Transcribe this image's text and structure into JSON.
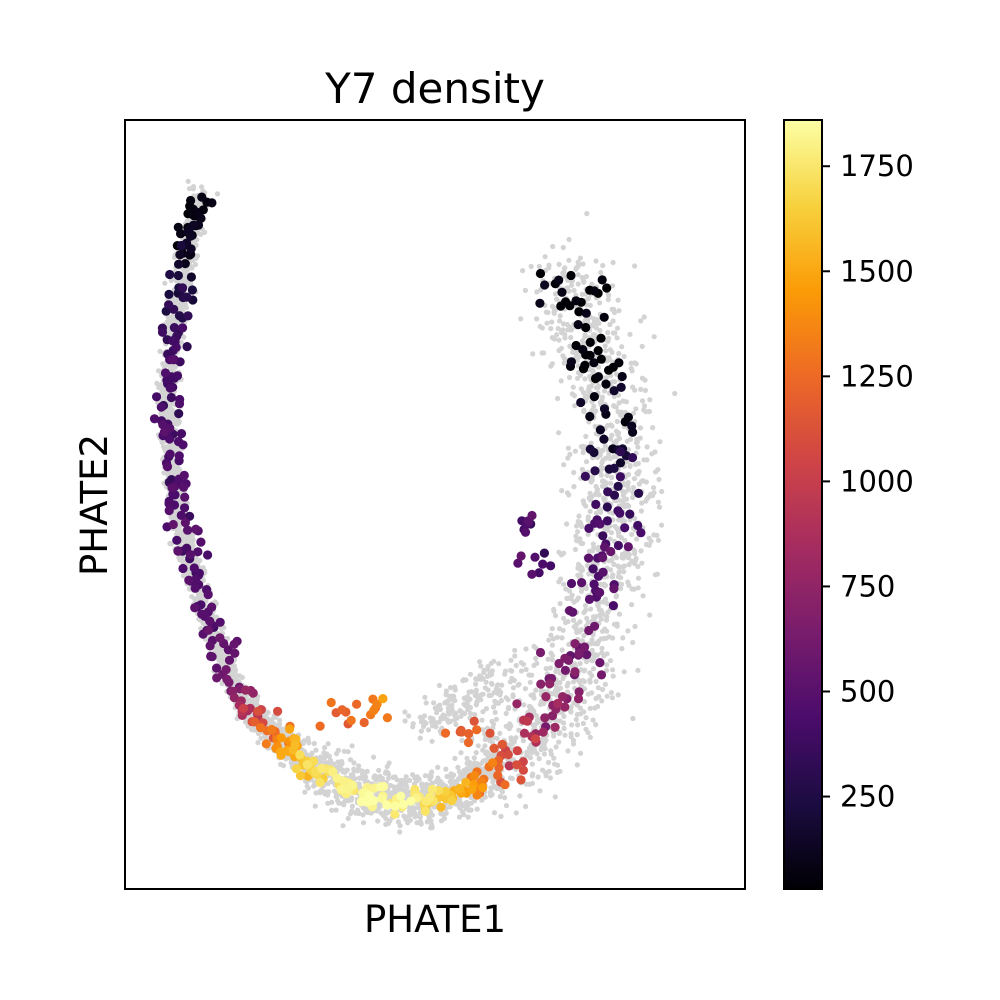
{
  "chart_data": {
    "type": "scatter",
    "title": "Y7 density",
    "xlabel": "PHATE1",
    "ylabel": "PHATE2",
    "x_ticks_shown": false,
    "y_ticks_shown": false,
    "grid": false,
    "background_point_color": "#d3d3d3",
    "colormap": "inferno",
    "colorbar": {
      "min": 30,
      "max": 1860,
      "ticks": [
        250,
        500,
        750,
        1000,
        1250,
        1500,
        1750
      ],
      "tick_labels": [
        "250",
        "500",
        "750",
        "1000",
        "1250",
        "1500",
        "1750"
      ],
      "colors": [
        "#000004",
        "#1b0c41",
        "#4a0c6b",
        "#781c6d",
        "#a52c60",
        "#cf4446",
        "#ed6925",
        "#fb9b06",
        "#f7d13d",
        "#fcffa4"
      ]
    },
    "series": [
      {
        "values": [
          {
            "x": -0.76,
            "y": 0.85,
            "v": 40
          },
          {
            "x": -0.78,
            "y": 0.78,
            "v": 60
          },
          {
            "x": -0.8,
            "y": 0.72,
            "v": 90
          },
          {
            "x": -0.82,
            "y": 0.6,
            "v": 250
          },
          {
            "x": -0.84,
            "y": 0.5,
            "v": 360
          },
          {
            "x": -0.86,
            "y": 0.4,
            "v": 400
          },
          {
            "x": -0.86,
            "y": 0.3,
            "v": 420
          },
          {
            "x": -0.85,
            "y": 0.2,
            "v": 430
          },
          {
            "x": -0.84,
            "y": 0.1,
            "v": 440
          },
          {
            "x": -0.82,
            "y": 0.0,
            "v": 450
          },
          {
            "x": -0.79,
            "y": -0.1,
            "v": 460
          },
          {
            "x": -0.75,
            "y": -0.2,
            "v": 480
          },
          {
            "x": -0.71,
            "y": -0.3,
            "v": 500
          },
          {
            "x": -0.66,
            "y": -0.4,
            "v": 560
          },
          {
            "x": -0.6,
            "y": -0.48,
            "v": 900
          },
          {
            "x": -0.54,
            "y": -0.53,
            "v": 1250
          },
          {
            "x": -0.48,
            "y": -0.58,
            "v": 1500
          },
          {
            "x": -0.42,
            "y": -0.62,
            "v": 1650
          },
          {
            "x": -0.34,
            "y": -0.66,
            "v": 1750
          },
          {
            "x": -0.26,
            "y": -0.69,
            "v": 1800
          },
          {
            "x": -0.18,
            "y": -0.71,
            "v": 1840
          },
          {
            "x": -0.1,
            "y": -0.72,
            "v": 1820
          },
          {
            "x": -0.02,
            "y": -0.72,
            "v": 1700
          },
          {
            "x": 0.06,
            "y": -0.7,
            "v": 1550
          },
          {
            "x": 0.14,
            "y": -0.67,
            "v": 1350
          },
          {
            "x": 0.22,
            "y": -0.63,
            "v": 1150
          },
          {
            "x": 0.3,
            "y": -0.57,
            "v": 900
          },
          {
            "x": 0.38,
            "y": -0.48,
            "v": 720
          },
          {
            "x": 0.45,
            "y": -0.38,
            "v": 640
          },
          {
            "x": 0.5,
            "y": -0.26,
            "v": 560
          },
          {
            "x": 0.54,
            "y": -0.14,
            "v": 480
          },
          {
            "x": 0.57,
            "y": -0.02,
            "v": 420
          },
          {
            "x": 0.58,
            "y": 0.1,
            "v": 330
          },
          {
            "x": 0.58,
            "y": 0.22,
            "v": 150
          },
          {
            "x": 0.55,
            "y": 0.34,
            "v": 80
          },
          {
            "x": 0.51,
            "y": 0.46,
            "v": 50
          },
          {
            "x": 0.46,
            "y": 0.56,
            "v": 40
          },
          {
            "x": 0.42,
            "y": 0.66,
            "v": 35
          },
          {
            "x": -0.3,
            "y": -0.5,
            "v": 1200
          },
          {
            "x": -0.22,
            "y": -0.48,
            "v": 1300
          },
          {
            "x": 0.1,
            "y": -0.55,
            "v": 1250
          },
          {
            "x": 0.3,
            "y": 0.0,
            "v": 420
          },
          {
            "x": 0.32,
            "y": -0.1,
            "v": 450
          }
        ]
      }
    ]
  }
}
